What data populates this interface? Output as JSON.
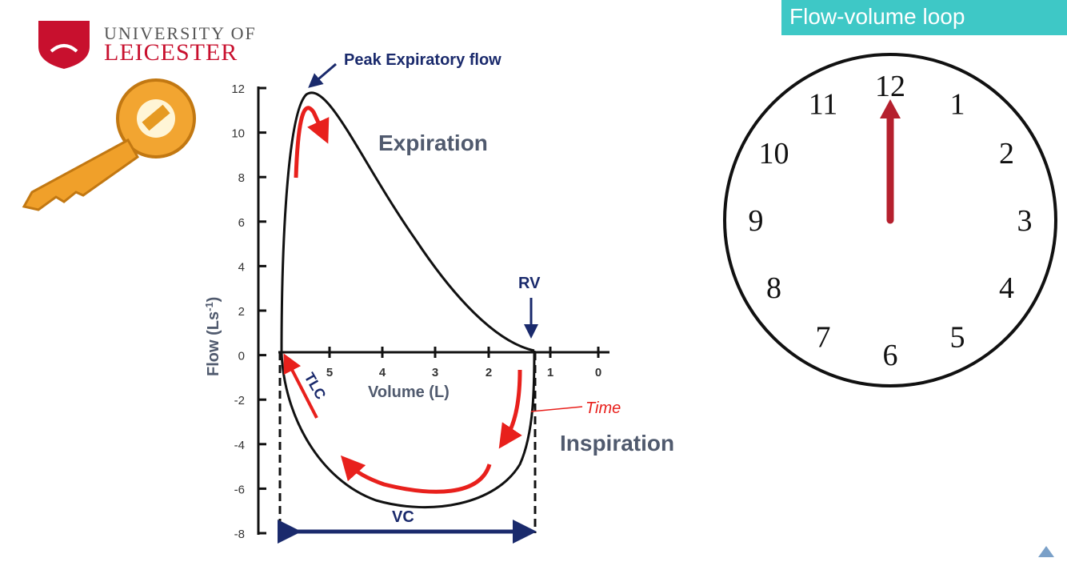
{
  "logo": {
    "line1": "UNIVERSITY OF",
    "line2": "LEICESTER"
  },
  "slide_title": "Flow-volume loop",
  "plot": {
    "y_label": "Flow (Ls",
    "y_label_sup": "-1",
    "y_label_end": ")",
    "x_label": "Volume (L)",
    "yticks": [
      "12",
      "10",
      "8",
      "6",
      "4",
      "2",
      "0",
      "-2",
      "-4",
      "-6",
      "-8"
    ],
    "xticks": [
      "5",
      "4",
      "3",
      "2",
      "1",
      "0"
    ],
    "annotations": {
      "peak": "Peak Expiratory flow",
      "expiration": "Expiration",
      "rv": "RV",
      "tlc": "TLC",
      "time": "Time",
      "inspiration": "Inspiration",
      "vc": "VC"
    }
  },
  "clock": {
    "numbers": [
      "12",
      "1",
      "2",
      "3",
      "4",
      "5",
      "6",
      "7",
      "8",
      "9",
      "10",
      "11"
    ]
  }
}
